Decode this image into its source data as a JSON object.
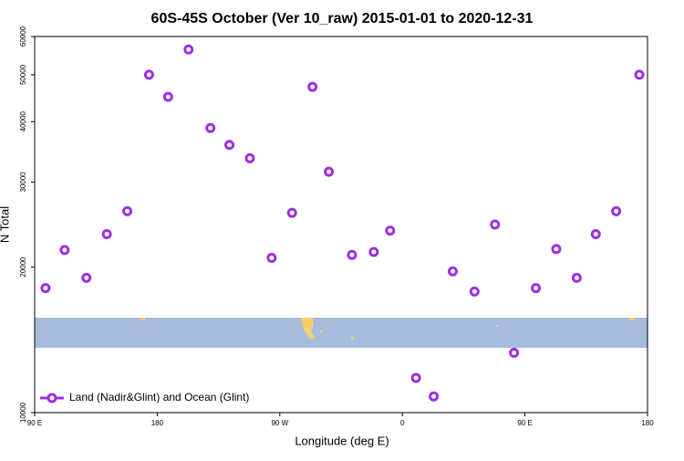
{
  "chart_data": {
    "type": "scatter",
    "title": "60S-45S October (Ver 10_raw)   2015-01-01 to 2020-12-31",
    "xlabel": "Longitude (deg E)",
    "ylabel": "N Total",
    "series": [
      {
        "name": "Land (Nadir&Glint) and Ocean (Glint)",
        "color": "#9b30e6",
        "x": [
          98,
          112,
          128,
          143,
          158,
          174,
          188,
          203,
          219,
          233,
          248,
          264,
          279,
          294,
          306,
          323,
          339,
          351,
          370,
          383,
          397,
          413,
          428,
          442,
          458,
          473,
          488,
          502,
          517,
          534
        ],
        "values": [
          18100,
          21700,
          19000,
          23400,
          26100,
          50000,
          45000,
          56400,
          38800,
          35800,
          33600,
          20900,
          25900,
          47200,
          31500,
          21200,
          21500,
          23800,
          11800,
          10800,
          19600,
          17800,
          24500,
          13300,
          18100,
          21800,
          19000,
          23400,
          26100,
          50000
        ]
      }
    ],
    "xlim": [
      90,
      540
    ],
    "xticks": [
      {
        "value": 90,
        "label": "90 E"
      },
      180,
      {
        "value": 270,
        "label": "90 W"
      },
      {
        "value": 360,
        "label": "0"
      },
      {
        "value": 450,
        "label": "90 E"
      },
      {
        "value": 540,
        "label": "180"
      }
    ],
    "ylim": [
      10000,
      60000
    ],
    "ylog": true,
    "yticks": [
      10000,
      20000,
      30000,
      40000,
      50000,
      60000
    ],
    "legend": "lower left"
  }
}
